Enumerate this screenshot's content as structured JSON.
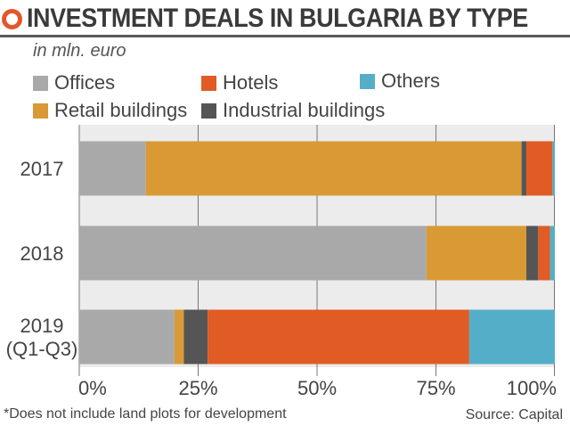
{
  "header": {
    "title": "INVESTMENT DEALS IN BULGARIA BY TYPE",
    "subtitle": "in mln. euro"
  },
  "footnote": "*Does not include land plots for development",
  "source": "Source: Capital",
  "chart_data": {
    "type": "bar",
    "orientation": "horizontal",
    "stacked": true,
    "percent_stacked": true,
    "title": "INVESTMENT DEALS IN BULGARIA BY TYPE",
    "subtitle": "in mln. euro",
    "categories": [
      "2017",
      "2018",
      "2019 (Q1-Q3)"
    ],
    "category_lines": [
      [
        "2017"
      ],
      [
        "2018"
      ],
      [
        "2019",
        "(Q1-Q3)"
      ]
    ],
    "series": [
      {
        "name": "Offices",
        "color": "#a9a9a9",
        "values": [
          14,
          73,
          20
        ]
      },
      {
        "name": "Retail buildings",
        "color": "#d99a35",
        "values": [
          79,
          21,
          2
        ]
      },
      {
        "name": "Industrial buildings",
        "color": "#555555",
        "values": [
          1,
          2.5,
          5
        ]
      },
      {
        "name": "Hotels",
        "color": "#e05c24",
        "values": [
          5.5,
          2.5,
          55
        ]
      },
      {
        "name": "Others",
        "color": "#54aec8",
        "values": [
          0.5,
          1,
          18
        ]
      }
    ],
    "xlim": [
      0,
      100
    ],
    "x_ticks": [
      0,
      25,
      50,
      75,
      100
    ],
    "x_tick_labels": [
      "0%",
      "25%",
      "50%",
      "75%",
      "100%"
    ],
    "grid": true,
    "background_color": "#ececec",
    "legend": {
      "placement": "top",
      "rows": [
        [
          "Offices",
          "Hotels",
          "Others"
        ],
        [
          "Retail buildings",
          "Industrial buildings"
        ]
      ]
    }
  }
}
